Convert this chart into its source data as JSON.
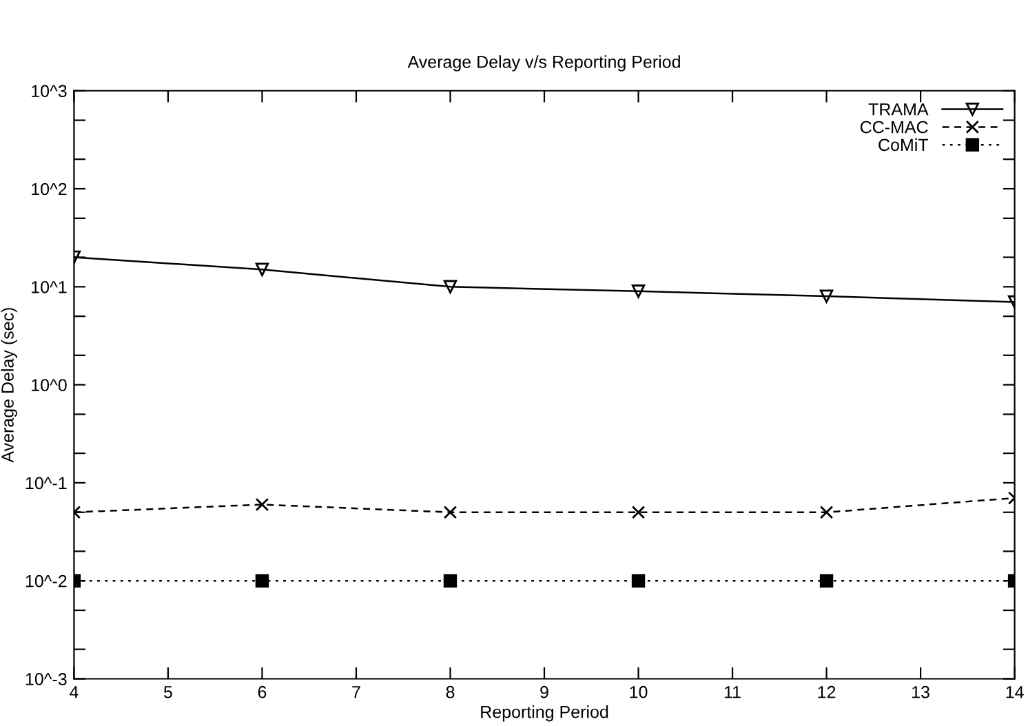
{
  "chart_data": {
    "type": "line",
    "title": "Average Delay v/s Reporting Period",
    "xlabel": "Reporting Period",
    "ylabel": "Average Delay (sec)",
    "x": [
      4,
      6,
      8,
      10,
      12,
      14
    ],
    "series": [
      {
        "name": "TRAMA",
        "color": "#000000",
        "marker": "triangle_down",
        "line_style": "solid",
        "values": [
          20,
          15,
          10,
          9,
          8,
          7
        ]
      },
      {
        "name": "CC-MAC",
        "color": "#000000",
        "marker": "cross",
        "line_style": "dashed",
        "values": [
          0.05,
          0.06,
          0.05,
          0.05,
          0.05,
          0.07
        ]
      },
      {
        "name": "CoMiT",
        "color": "#000000",
        "marker": "square",
        "line_style": "dotted",
        "values": [
          0.01,
          0.01,
          0.01,
          0.01,
          0.01,
          0.01
        ]
      }
    ],
    "log": "y",
    "xlim": [
      4,
      14
    ],
    "xticks": [
      4,
      5,
      6,
      7,
      8,
      9,
      10,
      11,
      12,
      13,
      14
    ],
    "ylim": [
      0.001,
      1000
    ],
    "yticks": [
      {
        "value": 0.001,
        "label": "10^-3"
      },
      {
        "value": 0.002,
        "label": null
      },
      {
        "value": 0.005,
        "label": null
      },
      {
        "value": 0.01,
        "label": "10^-2"
      },
      {
        "value": 0.02,
        "label": null
      },
      {
        "value": 0.05,
        "label": null
      },
      {
        "value": 0.1,
        "label": "10^-1"
      },
      {
        "value": 0.2,
        "label": null
      },
      {
        "value": 0.5,
        "label": null
      },
      {
        "value": 1,
        "label": "10^0"
      },
      {
        "value": 2,
        "label": null
      },
      {
        "value": 5,
        "label": null
      },
      {
        "value": 10,
        "label": "10^1"
      },
      {
        "value": 20,
        "label": null
      },
      {
        "value": 50,
        "label": null
      },
      {
        "value": 100,
        "label": "10^2"
      },
      {
        "value": 200,
        "label": null
      },
      {
        "value": 500,
        "label": null
      },
      {
        "value": 1000,
        "label": "10^3"
      }
    ],
    "grid": false,
    "legend": "top right"
  }
}
